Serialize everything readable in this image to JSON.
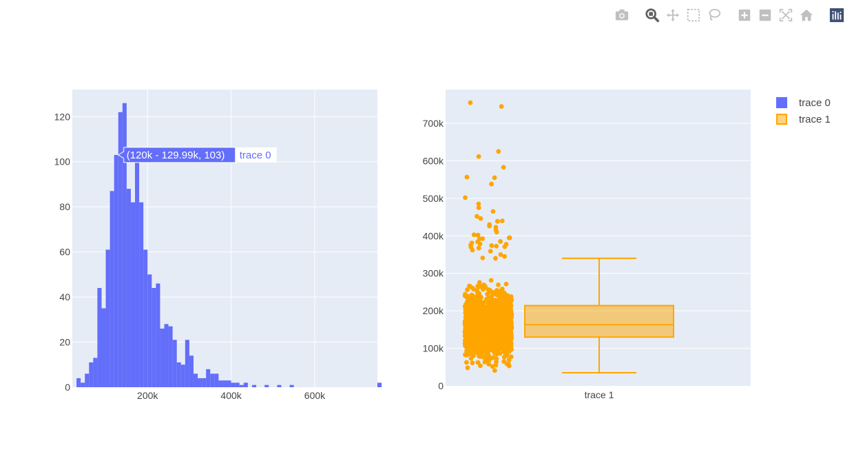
{
  "modebar": {
    "buttons": [
      {
        "name": "camera-icon",
        "tip": "Download plot as a png"
      },
      {
        "name": "zoom-icon",
        "tip": "Zoom",
        "active": true
      },
      {
        "name": "pan-icon",
        "tip": "Pan"
      },
      {
        "name": "box-select-icon",
        "tip": "Box Select"
      },
      {
        "name": "lasso-icon",
        "tip": "Lasso Select"
      },
      {
        "name": "zoom-in-icon",
        "tip": "Zoom in"
      },
      {
        "name": "zoom-out-icon",
        "tip": "Zoom out"
      },
      {
        "name": "autoscale-icon",
        "tip": "Autoscale"
      },
      {
        "name": "reset-axes-icon",
        "tip": "Reset axes"
      },
      {
        "name": "plotly-logo-icon",
        "tip": "Produced with Plotly"
      }
    ],
    "icon_color": "#c0c0c0",
    "active_color": "#606060",
    "logo_color": "#3f4f75"
  },
  "chart_data": [
    {
      "type": "bar",
      "subtype": "histogram",
      "series_name": "trace 0",
      "color": "#636efa",
      "bin_width": 10000,
      "bins_start": 30000,
      "values": [
        4,
        2,
        6,
        11,
        13,
        44,
        35,
        61,
        87,
        103,
        122,
        126,
        88,
        82,
        100,
        82,
        61,
        50,
        44,
        46,
        26,
        28,
        27,
        21,
        11,
        10,
        21,
        14,
        6,
        4,
        4,
        8,
        6,
        6,
        3,
        3,
        3,
        2,
        2,
        1,
        2,
        0,
        1,
        0,
        0,
        1,
        0,
        0,
        1,
        0,
        0,
        1,
        0,
        0,
        0,
        0,
        0,
        0,
        0,
        0,
        0,
        0,
        0,
        0,
        0,
        0,
        0,
        0,
        0,
        0,
        0,
        0,
        2
      ],
      "xlim": [
        20000,
        750000
      ],
      "ylim": [
        0,
        132
      ],
      "x_ticks": [
        {
          "value": 200000,
          "label": "200k"
        },
        {
          "value": 400000,
          "label": "400k"
        },
        {
          "value": 600000,
          "label": "600k"
        }
      ],
      "y_ticks": [
        {
          "value": 0,
          "label": "0"
        },
        {
          "value": 20,
          "label": "20"
        },
        {
          "value": 40,
          "label": "40"
        },
        {
          "value": 60,
          "label": "60"
        },
        {
          "value": 80,
          "label": "80"
        },
        {
          "value": 100,
          "label": "100"
        },
        {
          "value": 120,
          "label": "120"
        }
      ],
      "grid": true,
      "hover": {
        "text": "(120k - 129.99k, 103)",
        "trace": "trace 0",
        "bin_index": 9
      }
    },
    {
      "type": "box",
      "series_name": "trace 1",
      "category": "trace 1",
      "color": "#ffa500",
      "fill": "rgba(255,165,0,0.5)",
      "lower_fence": 34900,
      "q1": 129975,
      "median": 163000,
      "q3": 214000,
      "upper_fence": 340000,
      "outliers_visible": false,
      "points": "all",
      "ylim": [
        0,
        790000
      ],
      "y_ticks": [
        {
          "value": 0,
          "label": "0"
        },
        {
          "value": 100000,
          "label": "100k"
        },
        {
          "value": 200000,
          "label": "200k"
        },
        {
          "value": 300000,
          "label": "300k"
        },
        {
          "value": 400000,
          "label": "400k"
        },
        {
          "value": 500000,
          "label": "500k"
        },
        {
          "value": 600000,
          "label": "600k"
        },
        {
          "value": 700000,
          "label": "700k"
        }
      ],
      "grid": true,
      "outlier_points": [
        755000,
        745000,
        625000,
        611500,
        582900,
        556581,
        555000,
        538000,
        501837,
        485000,
        475000,
        465000,
        451950,
        446261,
        440000,
        438780,
        430000,
        426000,
        423000,
        415298,
        410000,
        402861,
        402000,
        395000,
        394617,
        392500,
        392000,
        385000,
        383970,
        381000,
        378500,
        377500,
        375000,
        374000,
        372500,
        370878,
        369900,
        367294,
        361919,
        359100,
        350000,
        345000,
        341000,
        340000
      ]
    }
  ],
  "legend": {
    "items": [
      {
        "label": "trace 0",
        "color": "#636efa",
        "border": "#636efa"
      },
      {
        "label": "trace 1",
        "color": "rgba(255,165,0,0.5)",
        "border": "#ffa500"
      }
    ]
  }
}
